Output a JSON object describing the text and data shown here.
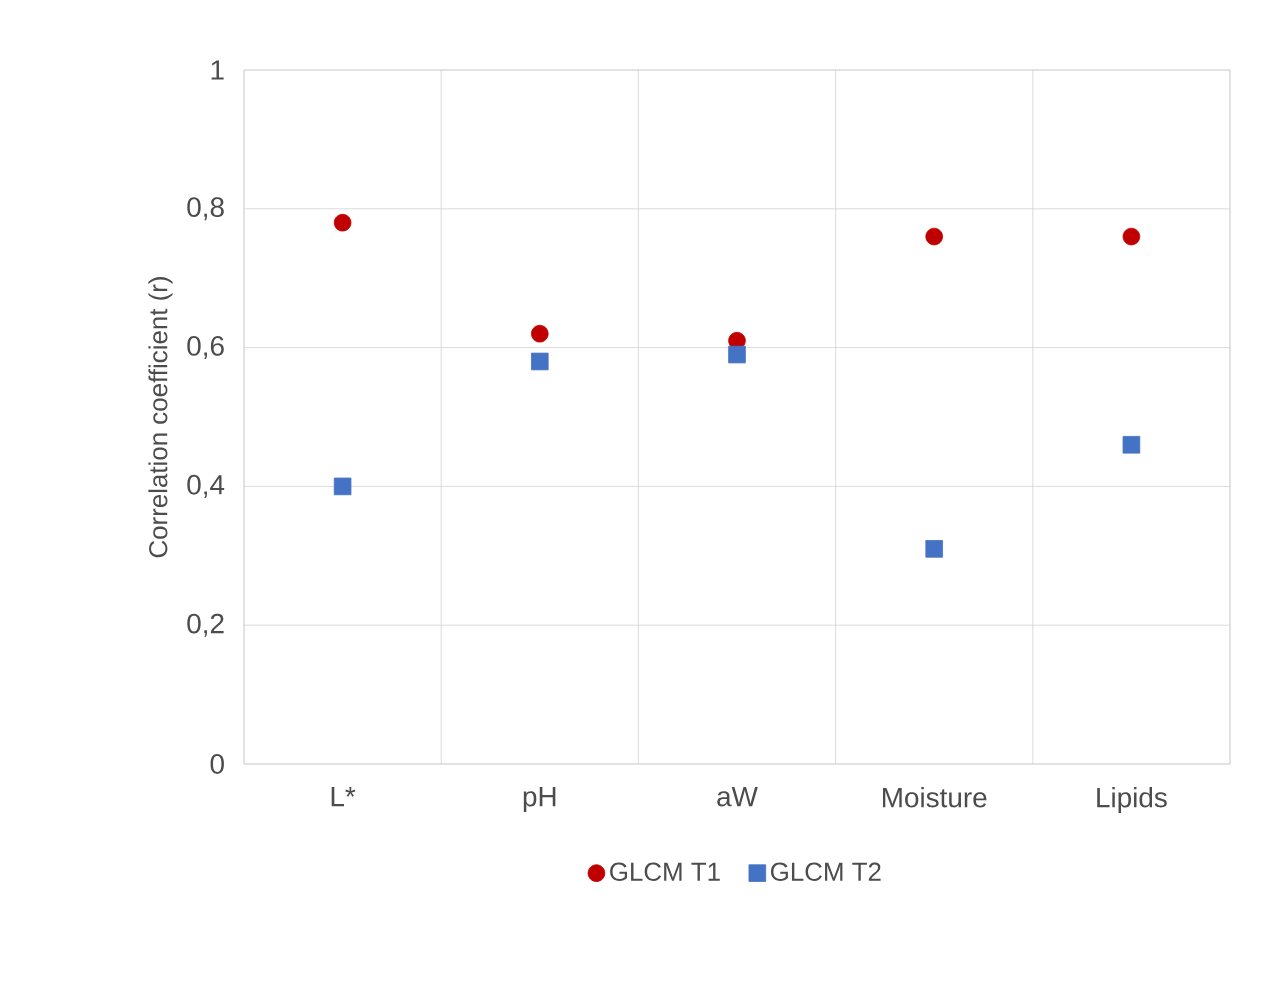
{
  "chart_data": {
    "type": "scatter",
    "ylabel": "Correlation coefficient (r)",
    "categories": [
      "L*",
      "pH",
      "aW",
      "Moisture",
      "Lipids"
    ],
    "series": [
      {
        "name": "GLCM T1",
        "color": "#c00000",
        "marker": "circle",
        "values": [
          0.78,
          0.62,
          0.61,
          0.76,
          0.76
        ]
      },
      {
        "name": "GLCM T2",
        "color": "#4472c4",
        "marker": "square",
        "values": [
          0.4,
          0.58,
          0.59,
          0.31,
          0.46
        ]
      }
    ],
    "ylim": [
      0,
      1
    ],
    "yticks": [
      0,
      {
        "value": 0.2,
        "label": "0,2"
      },
      {
        "value": 0.4,
        "label": "0,4"
      },
      {
        "value": 0.6,
        "label": "0,6"
      },
      {
        "value": 0.8,
        "label": "0,8"
      },
      1
    ],
    "grid": true,
    "legend": "bottom"
  }
}
